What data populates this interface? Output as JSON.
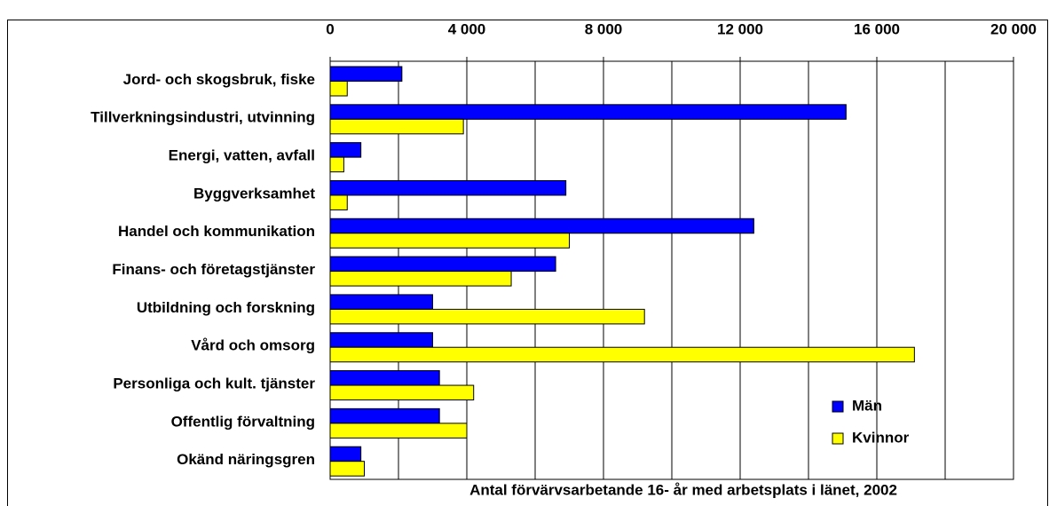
{
  "chart_data": {
    "type": "hbar",
    "x_label": "Antal förvärvsarbetande 16- år med arbetsplats i länet, 2002",
    "categories": [
      "Jord- och skogsbruk, fiske",
      "Tillverkningsindustri, utvinning",
      "Energi, vatten, avfall",
      "Byggverksamhet",
      "Handel och kommunikation",
      "Finans- och företagstjänster",
      "Utbildning och forskning",
      "Vård och omsorg",
      "Personliga och kult. tjänster",
      "Offentlig förvaltning",
      "Okänd näringsgren"
    ],
    "series": [
      {
        "name": "Män",
        "color": "#0000ff",
        "values": [
          2100,
          15100,
          900,
          6900,
          12400,
          6600,
          3000,
          3000,
          3200,
          3200,
          900
        ]
      },
      {
        "name": "Kvinnor",
        "color": "#ffff00",
        "values": [
          500,
          3900,
          400,
          500,
          7000,
          5300,
          9200,
          17100,
          4200,
          4000,
          1000
        ]
      }
    ],
    "xlim": [
      0,
      20000
    ],
    "xticks": [
      0,
      {
        "value": 4000,
        "label": "4 000"
      },
      {
        "value": 8000,
        "label": "8 000"
      },
      {
        "value": 12000,
        "label": "12 000"
      },
      {
        "value": 16000,
        "label": "16 000"
      },
      {
        "value": 20000,
        "label": "20 000"
      }
    ],
    "minor_grid": [
      2000,
      6000,
      10000,
      14000,
      18000
    ],
    "grid": true,
    "legend": "lower right"
  }
}
